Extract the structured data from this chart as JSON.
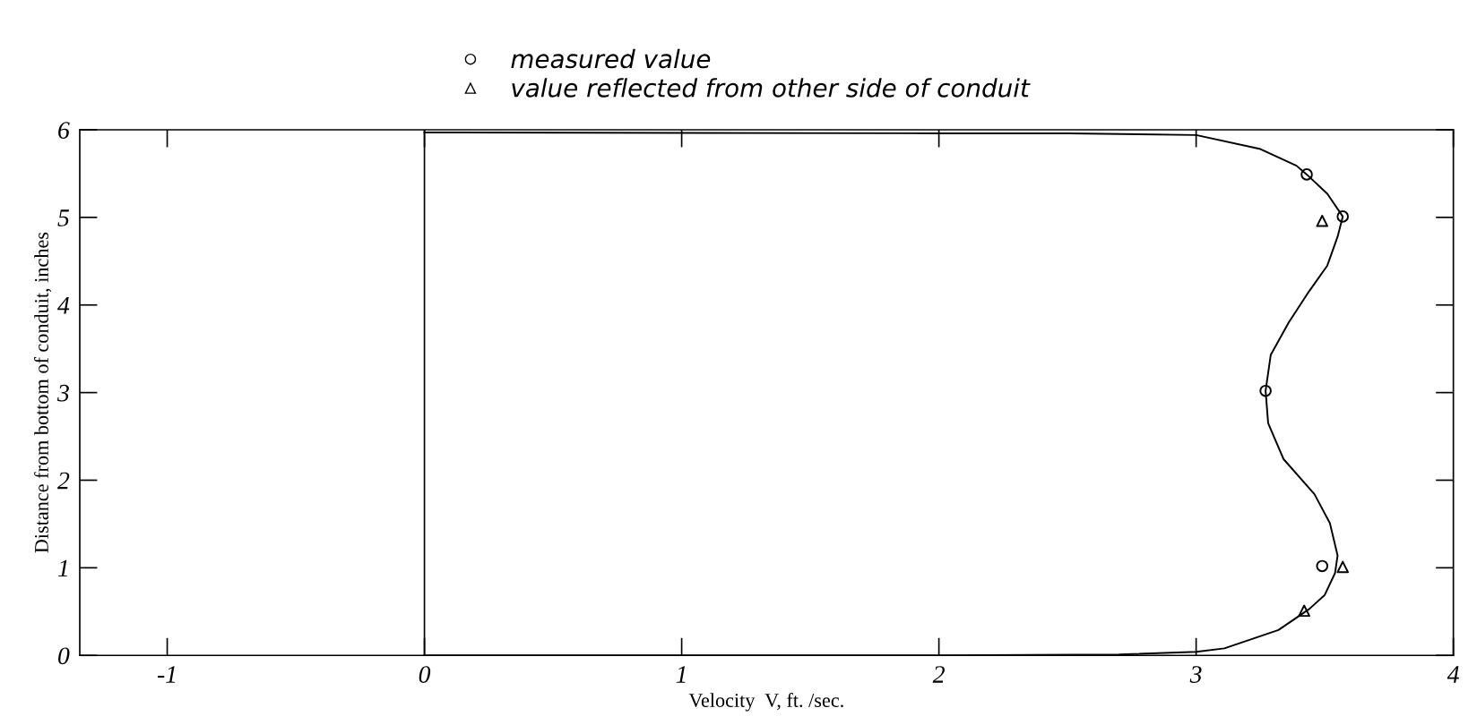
{
  "chart_data": {
    "type": "scatter",
    "xlabel": "Velocity  V, ft. /sec.",
    "ylabel": "Distance from bottom of conduit, inches",
    "xlim": [
      -1.34,
      4.0
    ],
    "ylim": [
      0,
      6
    ],
    "xticks": [
      -1,
      0,
      1,
      2,
      3,
      4
    ],
    "yticks": [
      0,
      1,
      2,
      3,
      4,
      5,
      6
    ],
    "grid": false,
    "legend": "top",
    "ref_lines": [
      {
        "axis": "x",
        "value": 0,
        "color": "#000000",
        "line_style": "solid"
      }
    ],
    "series": [
      {
        "name": "measured value",
        "marker": "circle",
        "color": "#000000",
        "x": [
          3.43,
          3.57,
          3.27,
          3.49
        ],
        "values": [
          5.49,
          5.01,
          3.02,
          1.02
        ]
      },
      {
        "name": "value reflected from other side of conduit",
        "marker": "triangle",
        "color": "#000000",
        "x": [
          3.49,
          3.57,
          3.42
        ],
        "values": [
          4.96,
          1.01,
          0.51
        ]
      },
      {
        "type": "line",
        "marker": "none",
        "line_style": "solid",
        "color": "#000000",
        "x": [
          0,
          2.0,
          2.5,
          3.0,
          3.25,
          3.39,
          3.43,
          3.51,
          3.57,
          3.55,
          3.51,
          3.44,
          3.36,
          3.29,
          3.27,
          3.28,
          3.34,
          3.46,
          3.52,
          3.55,
          3.54,
          3.5,
          3.44,
          3.32,
          3.11,
          3.0,
          2.7,
          2.0,
          0
        ],
        "values": [
          5.97,
          5.96,
          5.96,
          5.94,
          5.78,
          5.59,
          5.49,
          5.27,
          5.01,
          4.78,
          4.45,
          4.16,
          3.8,
          3.43,
          3.02,
          2.65,
          2.24,
          1.84,
          1.51,
          1.14,
          0.94,
          0.69,
          0.53,
          0.29,
          0.08,
          0.04,
          0.01,
          0.0,
          0.0
        ]
      }
    ]
  }
}
